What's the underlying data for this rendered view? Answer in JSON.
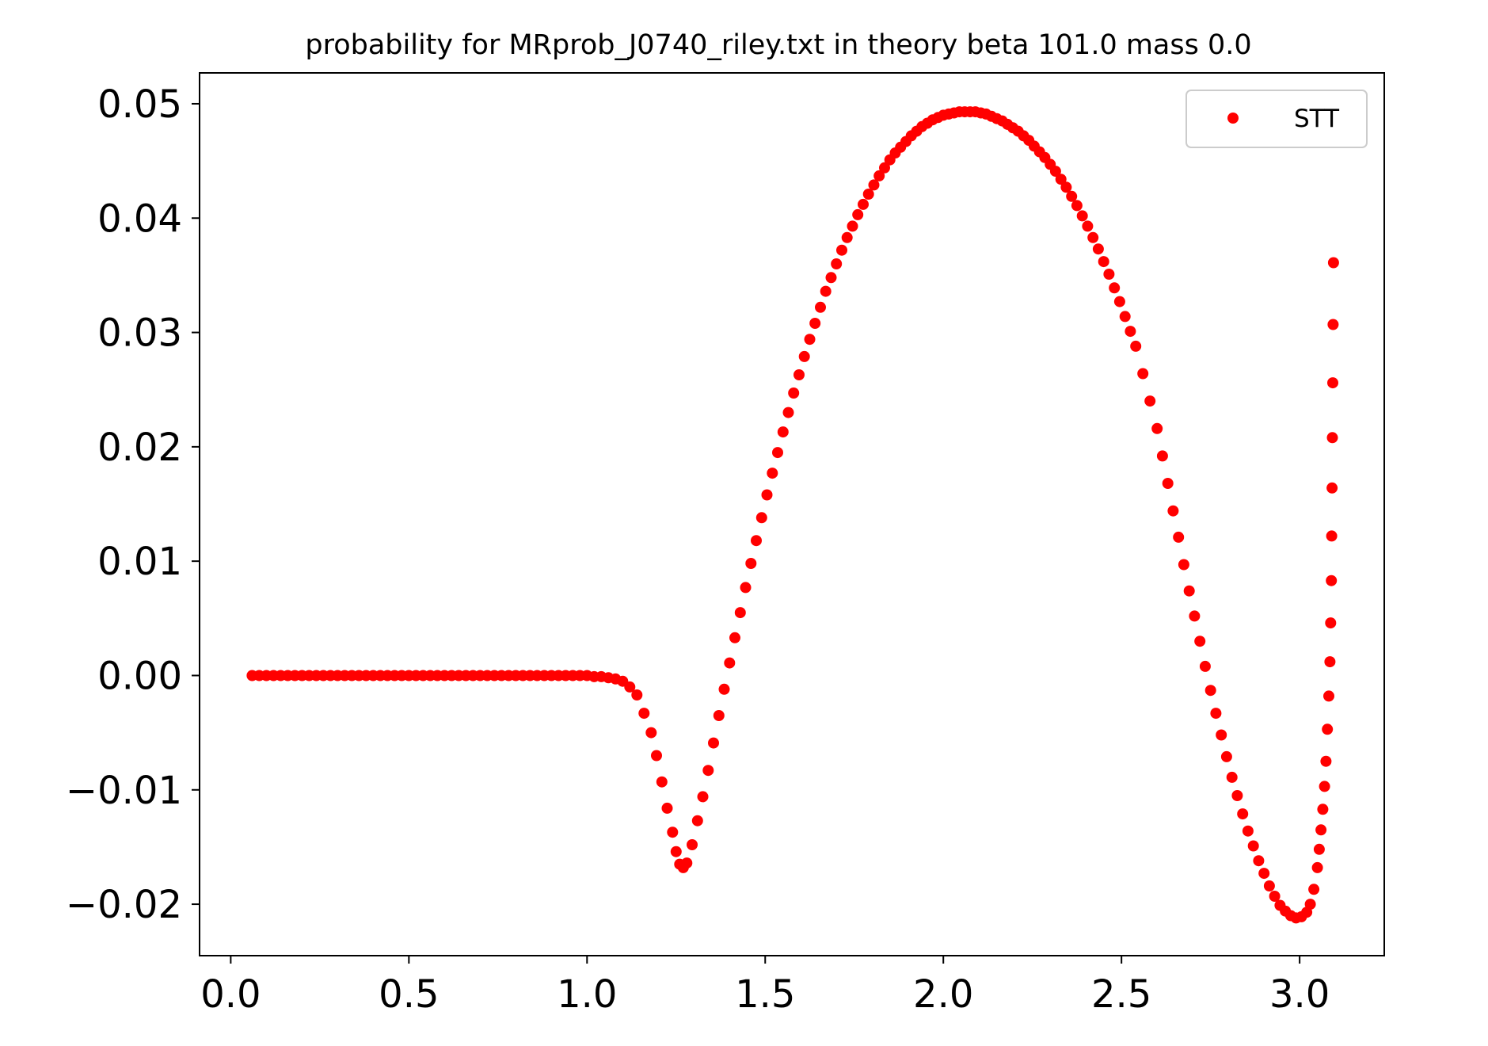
{
  "chart_data": {
    "type": "scatter",
    "title": "probability for MRprob_J0740_riley.txt in theory beta 101.0 mass 0.0",
    "xlabel": "",
    "ylabel": "",
    "xlim": [
      -0.0875,
      3.2375
    ],
    "ylim": [
      -0.0245,
      0.0527
    ],
    "x_ticks": [
      0.0,
      0.5,
      1.0,
      1.5,
      2.0,
      2.5,
      3.0
    ],
    "x_tick_labels": [
      "0.0",
      "0.5",
      "1.0",
      "1.5",
      "2.0",
      "2.5",
      "3.0"
    ],
    "y_ticks": [
      -0.02,
      -0.01,
      0.0,
      0.01,
      0.02,
      0.03,
      0.04,
      0.05
    ],
    "y_tick_labels": [
      "−0.02",
      "−0.01",
      "0.00",
      "0.01",
      "0.02",
      "0.03",
      "0.04",
      "0.05"
    ],
    "grid": false,
    "legend": {
      "position": "top-right",
      "entries": [
        "STT"
      ]
    },
    "series": [
      {
        "name": "STT",
        "color": "#ff0000",
        "marker": "dot",
        "points": [
          [
            0.06,
            0.0
          ],
          [
            0.08,
            0.0
          ],
          [
            0.1,
            0.0
          ],
          [
            0.12,
            0.0
          ],
          [
            0.14,
            0.0
          ],
          [
            0.16,
            0.0
          ],
          [
            0.18,
            0.0
          ],
          [
            0.2,
            0.0
          ],
          [
            0.22,
            0.0
          ],
          [
            0.24,
            0.0
          ],
          [
            0.26,
            0.0
          ],
          [
            0.28,
            0.0
          ],
          [
            0.3,
            0.0
          ],
          [
            0.32,
            0.0
          ],
          [
            0.34,
            0.0
          ],
          [
            0.36,
            0.0
          ],
          [
            0.38,
            0.0
          ],
          [
            0.4,
            0.0
          ],
          [
            0.42,
            0.0
          ],
          [
            0.44,
            0.0
          ],
          [
            0.46,
            0.0
          ],
          [
            0.48,
            0.0
          ],
          [
            0.5,
            0.0
          ],
          [
            0.52,
            0.0
          ],
          [
            0.54,
            0.0
          ],
          [
            0.56,
            0.0
          ],
          [
            0.58,
            0.0
          ],
          [
            0.6,
            0.0
          ],
          [
            0.62,
            0.0
          ],
          [
            0.64,
            0.0
          ],
          [
            0.66,
            0.0
          ],
          [
            0.68,
            0.0
          ],
          [
            0.7,
            0.0
          ],
          [
            0.72,
            0.0
          ],
          [
            0.74,
            0.0
          ],
          [
            0.76,
            0.0
          ],
          [
            0.78,
            0.0
          ],
          [
            0.8,
            0.0
          ],
          [
            0.82,
            0.0
          ],
          [
            0.84,
            0.0
          ],
          [
            0.86,
            0.0
          ],
          [
            0.88,
            0.0
          ],
          [
            0.9,
            0.0
          ],
          [
            0.92,
            0.0
          ],
          [
            0.94,
            0.0
          ],
          [
            0.96,
            0.0
          ],
          [
            0.98,
            0.0
          ],
          [
            1.0,
            0.0
          ],
          [
            1.02,
            -0.0001
          ],
          [
            1.04,
            -0.0001
          ],
          [
            1.06,
            -0.0002
          ],
          [
            1.08,
            -0.0003
          ],
          [
            1.1,
            -0.0005
          ],
          [
            1.12,
            -0.001
          ],
          [
            1.14,
            -0.0017
          ],
          [
            1.16,
            -0.0033
          ],
          [
            1.18,
            -0.005
          ],
          [
            1.195,
            -0.007
          ],
          [
            1.21,
            -0.0093
          ],
          [
            1.225,
            -0.0116
          ],
          [
            1.24,
            -0.0137
          ],
          [
            1.25,
            -0.0154
          ],
          [
            1.26,
            -0.0165
          ],
          [
            1.27,
            -0.0168
          ],
          [
            1.28,
            -0.0164
          ],
          [
            1.295,
            -0.0148
          ],
          [
            1.31,
            -0.0127
          ],
          [
            1.325,
            -0.0106
          ],
          [
            1.34,
            -0.0083
          ],
          [
            1.355,
            -0.0059
          ],
          [
            1.37,
            -0.0035
          ],
          [
            1.385,
            -0.0012
          ],
          [
            1.4,
            0.0011
          ],
          [
            1.415,
            0.0033
          ],
          [
            1.43,
            0.0055
          ],
          [
            1.445,
            0.0077
          ],
          [
            1.46,
            0.0098
          ],
          [
            1.475,
            0.0118
          ],
          [
            1.49,
            0.0138
          ],
          [
            1.505,
            0.0158
          ],
          [
            1.52,
            0.0177
          ],
          [
            1.535,
            0.0195
          ],
          [
            1.55,
            0.0213
          ],
          [
            1.565,
            0.023
          ],
          [
            1.58,
            0.0247
          ],
          [
            1.595,
            0.0263
          ],
          [
            1.61,
            0.0279
          ],
          [
            1.625,
            0.0294
          ],
          [
            1.64,
            0.0308
          ],
          [
            1.655,
            0.0322
          ],
          [
            1.67,
            0.0336
          ],
          [
            1.685,
            0.0348
          ],
          [
            1.7,
            0.036
          ],
          [
            1.715,
            0.0372
          ],
          [
            1.73,
            0.0383
          ],
          [
            1.745,
            0.0393
          ],
          [
            1.76,
            0.0403
          ],
          [
            1.775,
            0.0412
          ],
          [
            1.79,
            0.0421
          ],
          [
            1.805,
            0.0429
          ],
          [
            1.82,
            0.0437
          ],
          [
            1.835,
            0.0444
          ],
          [
            1.85,
            0.0451
          ],
          [
            1.865,
            0.0457
          ],
          [
            1.88,
            0.0462
          ],
          [
            1.895,
            0.0467
          ],
          [
            1.91,
            0.0472
          ],
          [
            1.925,
            0.0476
          ],
          [
            1.94,
            0.048
          ],
          [
            1.955,
            0.0483
          ],
          [
            1.97,
            0.0486
          ],
          [
            1.985,
            0.0488
          ],
          [
            2.0,
            0.049
          ],
          [
            2.015,
            0.0491
          ],
          [
            2.03,
            0.0492
          ],
          [
            2.045,
            0.0493
          ],
          [
            2.06,
            0.0493
          ],
          [
            2.075,
            0.0493
          ],
          [
            2.09,
            0.0493
          ],
          [
            2.105,
            0.0492
          ],
          [
            2.12,
            0.0491
          ],
          [
            2.135,
            0.0489
          ],
          [
            2.15,
            0.0487
          ],
          [
            2.165,
            0.0485
          ],
          [
            2.18,
            0.0482
          ],
          [
            2.195,
            0.0479
          ],
          [
            2.21,
            0.0476
          ],
          [
            2.225,
            0.0472
          ],
          [
            2.24,
            0.0468
          ],
          [
            2.255,
            0.0463
          ],
          [
            2.27,
            0.0458
          ],
          [
            2.285,
            0.0453
          ],
          [
            2.3,
            0.0447
          ],
          [
            2.315,
            0.0441
          ],
          [
            2.33,
            0.0434
          ],
          [
            2.345,
            0.0427
          ],
          [
            2.36,
            0.0419
          ],
          [
            2.375,
            0.0411
          ],
          [
            2.39,
            0.0402
          ],
          [
            2.405,
            0.0393
          ],
          [
            2.42,
            0.0383
          ],
          [
            2.435,
            0.0373
          ],
          [
            2.45,
            0.0362
          ],
          [
            2.465,
            0.0351
          ],
          [
            2.48,
            0.0339
          ],
          [
            2.495,
            0.0327
          ],
          [
            2.51,
            0.0314
          ],
          [
            2.525,
            0.0301
          ],
          [
            2.54,
            0.0288
          ],
          [
            2.56,
            0.0264
          ],
          [
            2.58,
            0.024
          ],
          [
            2.6,
            0.0216
          ],
          [
            2.615,
            0.0192
          ],
          [
            2.63,
            0.0168
          ],
          [
            2.645,
            0.0144
          ],
          [
            2.66,
            0.0121
          ],
          [
            2.675,
            0.0097
          ],
          [
            2.69,
            0.0074
          ],
          [
            2.705,
            0.0052
          ],
          [
            2.72,
            0.003
          ],
          [
            2.735,
            0.0008
          ],
          [
            2.75,
            -0.0013
          ],
          [
            2.765,
            -0.0033
          ],
          [
            2.78,
            -0.0052
          ],
          [
            2.795,
            -0.0071
          ],
          [
            2.81,
            -0.0089
          ],
          [
            2.825,
            -0.0105
          ],
          [
            2.84,
            -0.0121
          ],
          [
            2.855,
            -0.0136
          ],
          [
            2.87,
            -0.0149
          ],
          [
            2.885,
            -0.0162
          ],
          [
            2.9,
            -0.0173
          ],
          [
            2.915,
            -0.0184
          ],
          [
            2.93,
            -0.0193
          ],
          [
            2.945,
            -0.0201
          ],
          [
            2.96,
            -0.0206
          ],
          [
            2.975,
            -0.021
          ],
          [
            2.99,
            -0.0212
          ],
          [
            3.005,
            -0.0211
          ],
          [
            3.02,
            -0.0207
          ],
          [
            3.03,
            -0.02
          ],
          [
            3.04,
            -0.0187
          ],
          [
            3.05,
            -0.0168
          ],
          [
            3.055,
            -0.0152
          ],
          [
            3.06,
            -0.0135
          ],
          [
            3.065,
            -0.0117
          ],
          [
            3.07,
            -0.0097
          ],
          [
            3.074,
            -0.0075
          ],
          [
            3.078,
            -0.0047
          ],
          [
            3.082,
            -0.0018
          ],
          [
            3.085,
            0.0012
          ],
          [
            3.087,
            0.0046
          ],
          [
            3.089,
            0.0083
          ],
          [
            3.09,
            0.0122
          ],
          [
            3.091,
            0.0164
          ],
          [
            3.092,
            0.0208
          ],
          [
            3.093,
            0.0256
          ],
          [
            3.094,
            0.0307
          ],
          [
            3.095,
            0.0361
          ]
        ]
      }
    ]
  }
}
